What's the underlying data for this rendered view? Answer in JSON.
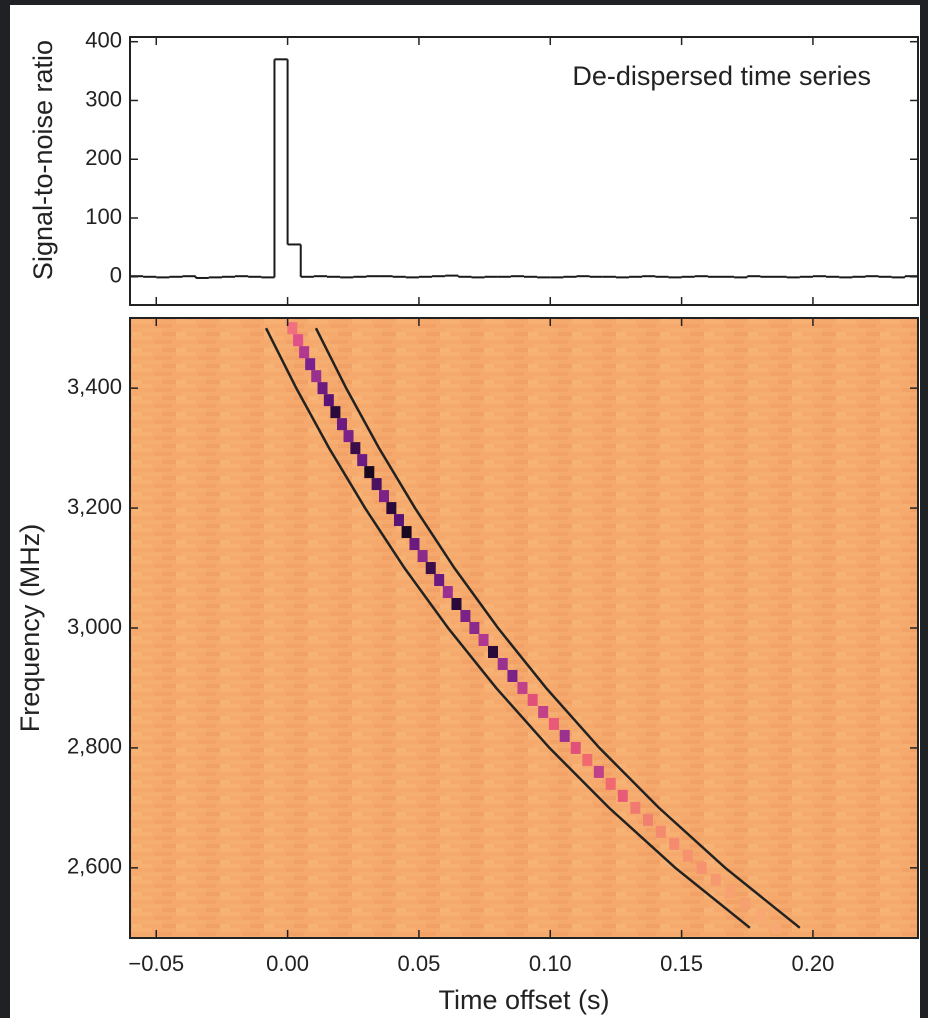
{
  "chart_data": [
    {
      "type": "histogram",
      "y_label": "Signal-to-noise ratio",
      "annotation": "De-dispersed time series",
      "color": "#1a1a1a",
      "bins": [
        -0.06,
        -0.055,
        -0.05,
        -0.045,
        -0.04,
        -0.035,
        -0.03,
        -0.025,
        -0.02,
        -0.015,
        -0.01,
        -0.005,
        0,
        0.005,
        0.01,
        0.015,
        0.02,
        0.025,
        0.03,
        0.035,
        0.04,
        0.045,
        0.05,
        0.055,
        0.06,
        0.065,
        0.07,
        0.075,
        0.08,
        0.085,
        0.09,
        0.095,
        0.1,
        0.105,
        0.11,
        0.115,
        0.12,
        0.125,
        0.13,
        0.135,
        0.14,
        0.145,
        0.15,
        0.155,
        0.16,
        0.165,
        0.17,
        0.175,
        0.18,
        0.185,
        0.19,
        0.195,
        0.2,
        0.205,
        0.21,
        0.215,
        0.22,
        0.225,
        0.23,
        0.235,
        0.24
      ],
      "values": [
        1,
        0,
        -1,
        0,
        1,
        -2,
        -1,
        0,
        1,
        0,
        -1,
        370,
        55,
        0,
        1,
        0,
        -1,
        0,
        1,
        1,
        0,
        -1,
        0,
        1,
        2,
        0,
        -1,
        0,
        0,
        1,
        0,
        -1,
        -1,
        0,
        1,
        0,
        0,
        -1,
        0,
        1,
        0,
        -1,
        0,
        1,
        0,
        0,
        -1,
        1,
        0,
        0,
        -1,
        0,
        1,
        0,
        -1,
        0,
        1,
        0,
        -1,
        1
      ],
      "xlim": [
        -0.06,
        0.24
      ],
      "xticks": [
        -0.05,
        0,
        0.05,
        0.1,
        0.15,
        0.2
      ],
      "ylim": [
        -48,
        408
      ],
      "yticks": [
        0,
        100,
        200,
        300,
        400
      ]
    },
    {
      "type": "heatmap",
      "x_label": "Time offset (s)",
      "y_label": "Frequency (MHz)",
      "background": "#f5a96c",
      "xlim": [
        -0.06,
        0.24
      ],
      "xticks": [
        {
          "value": -0.05,
          "label": "−0.05"
        },
        {
          "value": 0,
          "label": "0.00"
        },
        0.05,
        {
          "value": 0.1,
          "label": "0.10"
        },
        0.15,
        {
          "value": 0.2,
          "label": "0.20"
        }
      ],
      "ylim": [
        2483,
        3517
      ],
      "yticks": [
        {
          "value": 2600,
          "label": "2,600"
        },
        {
          "value": 2800,
          "label": "2,800"
        },
        {
          "value": 3000,
          "label": "3,000"
        },
        {
          "value": 3200,
          "label": "3,200"
        },
        {
          "value": 3400,
          "label": "3,400"
        }
      ],
      "pulse": {
        "x": [
          0.0018,
          0.004,
          0.0063,
          0.0086,
          0.0109,
          0.0133,
          0.0157,
          0.0182,
          0.0207,
          0.0232,
          0.0258,
          0.0284,
          0.0311,
          0.0339,
          0.0367,
          0.0395,
          0.0424,
          0.0453,
          0.0483,
          0.0514,
          0.0545,
          0.0577,
          0.061,
          0.0643,
          0.0677,
          0.0711,
          0.0746,
          0.0782,
          0.0819,
          0.0856,
          0.0894,
          0.0933,
          0.0973,
          0.1014,
          0.1055,
          0.1097,
          0.1141,
          0.1185,
          0.123,
          0.1276,
          0.1324,
          0.1372,
          0.1421,
          0.1472,
          0.1524,
          0.1576,
          0.163,
          0.1686,
          0.1743,
          0.1801,
          0.186
        ],
        "values": [
          3500,
          3480,
          3460,
          3440,
          3420,
          3400,
          3380,
          3360,
          3340,
          3320,
          3300,
          3280,
          3260,
          3240,
          3220,
          3200,
          3180,
          3160,
          3140,
          3120,
          3100,
          3080,
          3060,
          3040,
          3020,
          3000,
          2980,
          2960,
          2940,
          2920,
          2900,
          2880,
          2860,
          2840,
          2820,
          2800,
          2780,
          2760,
          2740,
          2720,
          2700,
          2680,
          2660,
          2640,
          2620,
          2600,
          2580,
          2560,
          2540,
          2520,
          2500
        ],
        "colors": [
          "#f07080",
          "#e0508a",
          "#b03890",
          "#7a2090",
          "#9a3090",
          "#6a1a80",
          "#5a1478",
          "#2a0a3a",
          "#6a1a80",
          "#7a2288",
          "#3a0e4a",
          "#6a1c82",
          "#1a0820",
          "#4a1260",
          "#7a2288",
          "#2a0a3a",
          "#5a1478",
          "#1a0820",
          "#6a1a80",
          "#8a2a8a",
          "#3a0e4a",
          "#6a1a80",
          "#9a3090",
          "#2a0a3a",
          "#7a2288",
          "#8a2a8a",
          "#b03890",
          "#2a0a3a",
          "#9a3090",
          "#7a2288",
          "#c0408a",
          "#e05078",
          "#c0408a",
          "#e85a78",
          "#9a3090",
          "#e05078",
          "#f06a70",
          "#c0408a",
          "#f06a70",
          "#e85a78",
          "#f07a70",
          "#f08070",
          "#f48a6e",
          "#f48a6e",
          "#f69270",
          "#f69270",
          "#f69870",
          "#f8a070",
          "#f6a070",
          "#f8a872",
          "#f8a872"
        ]
      },
      "series": [
        {
          "color": "#222222",
          "x": [
            -0.0082,
            0.0033,
            0.0158,
            0.0295,
            0.0445,
            0.0611,
            0.0794,
            0.0997,
            0.1224,
            0.1476,
            0.176
          ],
          "values": [
            3500,
            3400,
            3300,
            3200,
            3100,
            3000,
            2900,
            2800,
            2700,
            2600,
            2500
          ]
        },
        {
          "color": "#222222",
          "x": [
            0.0108,
            0.0223,
            0.0348,
            0.0485,
            0.0635,
            0.0801,
            0.0984,
            0.1187,
            0.1414,
            0.1666,
            0.195
          ],
          "values": [
            3500,
            3400,
            3300,
            3200,
            3100,
            3000,
            2900,
            2800,
            2700,
            2600,
            2500
          ]
        }
      ]
    }
  ]
}
